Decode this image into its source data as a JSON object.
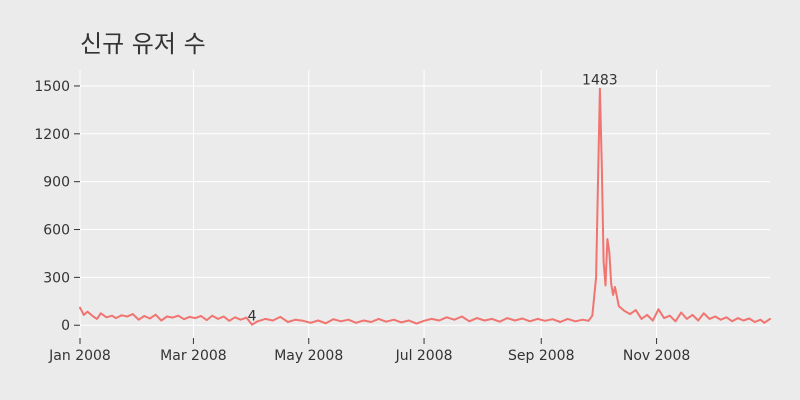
{
  "chart_data": {
    "type": "line",
    "title": "신규 유저 수",
    "xlabel": "",
    "ylabel": "",
    "x_range": [
      "2008-01-01",
      "2008-12-31"
    ],
    "ylim": [
      -80,
      1600
    ],
    "y_ticks": [
      0,
      300,
      600,
      900,
      1200,
      1500
    ],
    "y_tick_labels": [
      "0",
      "300",
      "600",
      "900",
      "1200",
      "1500"
    ],
    "x_ticks": [
      "2008-01-01",
      "2008-03-01",
      "2008-05-01",
      "2008-07-01",
      "2008-09-01",
      "2008-11-01"
    ],
    "x_tick_labels": [
      "Jan 2008",
      "Mar 2008",
      "May 2008",
      "Jul 2008",
      "Sep 2008",
      "Nov 2008"
    ],
    "grid": true,
    "line_color": "#f07470",
    "annotations": [
      {
        "x": "2008-10-02",
        "y": 1483,
        "text": "1483"
      },
      {
        "x": "2008-04-01",
        "y": 4,
        "text": "4"
      }
    ],
    "series": [
      {
        "points": [
          [
            "2008-01-01",
            110
          ],
          [
            "2008-01-03",
            65
          ],
          [
            "2008-01-05",
            85
          ],
          [
            "2008-01-08",
            55
          ],
          [
            "2008-01-10",
            40
          ],
          [
            "2008-01-12",
            75
          ],
          [
            "2008-01-15",
            50
          ],
          [
            "2008-01-18",
            60
          ],
          [
            "2008-01-20",
            45
          ],
          [
            "2008-01-23",
            62
          ],
          [
            "2008-01-26",
            55
          ],
          [
            "2008-01-29",
            70
          ],
          [
            "2008-02-01",
            35
          ],
          [
            "2008-02-04",
            58
          ],
          [
            "2008-02-07",
            42
          ],
          [
            "2008-02-10",
            66
          ],
          [
            "2008-02-13",
            30
          ],
          [
            "2008-02-16",
            55
          ],
          [
            "2008-02-19",
            48
          ],
          [
            "2008-02-22",
            60
          ],
          [
            "2008-02-25",
            38
          ],
          [
            "2008-02-28",
            52
          ],
          [
            "2008-03-02",
            45
          ],
          [
            "2008-03-05",
            58
          ],
          [
            "2008-03-08",
            32
          ],
          [
            "2008-03-11",
            60
          ],
          [
            "2008-03-14",
            40
          ],
          [
            "2008-03-17",
            55
          ],
          [
            "2008-03-20",
            28
          ],
          [
            "2008-03-23",
            50
          ],
          [
            "2008-03-26",
            35
          ],
          [
            "2008-03-29",
            48
          ],
          [
            "2008-04-01",
            4
          ],
          [
            "2008-04-04",
            25
          ],
          [
            "2008-04-08",
            40
          ],
          [
            "2008-04-12",
            30
          ],
          [
            "2008-04-16",
            52
          ],
          [
            "2008-04-20",
            20
          ],
          [
            "2008-04-24",
            35
          ],
          [
            "2008-04-28",
            28
          ],
          [
            "2008-05-02",
            15
          ],
          [
            "2008-05-06",
            30
          ],
          [
            "2008-05-10",
            12
          ],
          [
            "2008-05-14",
            38
          ],
          [
            "2008-05-18",
            25
          ],
          [
            "2008-05-22",
            35
          ],
          [
            "2008-05-26",
            15
          ],
          [
            "2008-05-30",
            30
          ],
          [
            "2008-06-03",
            20
          ],
          [
            "2008-06-07",
            40
          ],
          [
            "2008-06-11",
            22
          ],
          [
            "2008-06-15",
            35
          ],
          [
            "2008-06-19",
            18
          ],
          [
            "2008-06-23",
            30
          ],
          [
            "2008-06-27",
            10
          ],
          [
            "2008-07-01",
            28
          ],
          [
            "2008-07-05",
            40
          ],
          [
            "2008-07-09",
            30
          ],
          [
            "2008-07-13",
            50
          ],
          [
            "2008-07-17",
            35
          ],
          [
            "2008-07-21",
            55
          ],
          [
            "2008-07-25",
            25
          ],
          [
            "2008-07-29",
            45
          ],
          [
            "2008-08-02",
            30
          ],
          [
            "2008-08-06",
            40
          ],
          [
            "2008-08-10",
            22
          ],
          [
            "2008-08-14",
            45
          ],
          [
            "2008-08-18",
            30
          ],
          [
            "2008-08-22",
            42
          ],
          [
            "2008-08-26",
            25
          ],
          [
            "2008-08-30",
            40
          ],
          [
            "2008-09-03",
            28
          ],
          [
            "2008-09-07",
            38
          ],
          [
            "2008-09-11",
            20
          ],
          [
            "2008-09-15",
            40
          ],
          [
            "2008-09-19",
            25
          ],
          [
            "2008-09-23",
            35
          ],
          [
            "2008-09-26",
            28
          ],
          [
            "2008-09-28",
            60
          ],
          [
            "2008-09-30",
            300
          ],
          [
            "2008-10-01",
            900
          ],
          [
            "2008-10-02",
            1483
          ],
          [
            "2008-10-03",
            1000
          ],
          [
            "2008-10-04",
            400
          ],
          [
            "2008-10-05",
            250
          ],
          [
            "2008-10-06",
            540
          ],
          [
            "2008-10-07",
            460
          ],
          [
            "2008-10-08",
            260
          ],
          [
            "2008-10-09",
            190
          ],
          [
            "2008-10-10",
            240
          ],
          [
            "2008-10-12",
            120
          ],
          [
            "2008-10-15",
            90
          ],
          [
            "2008-10-18",
            70
          ],
          [
            "2008-10-21",
            95
          ],
          [
            "2008-10-24",
            40
          ],
          [
            "2008-10-27",
            65
          ],
          [
            "2008-10-30",
            30
          ],
          [
            "2008-11-02",
            100
          ],
          [
            "2008-11-05",
            45
          ],
          [
            "2008-11-08",
            60
          ],
          [
            "2008-11-11",
            25
          ],
          [
            "2008-11-14",
            80
          ],
          [
            "2008-11-17",
            40
          ],
          [
            "2008-11-20",
            65
          ],
          [
            "2008-11-23",
            30
          ],
          [
            "2008-11-26",
            75
          ],
          [
            "2008-11-29",
            40
          ],
          [
            "2008-12-02",
            55
          ],
          [
            "2008-12-05",
            35
          ],
          [
            "2008-12-08",
            50
          ],
          [
            "2008-12-11",
            25
          ],
          [
            "2008-12-14",
            45
          ],
          [
            "2008-12-17",
            30
          ],
          [
            "2008-12-20",
            42
          ],
          [
            "2008-12-23",
            20
          ],
          [
            "2008-12-26",
            35
          ],
          [
            "2008-12-28",
            15
          ],
          [
            "2008-12-31",
            40
          ]
        ]
      }
    ]
  }
}
